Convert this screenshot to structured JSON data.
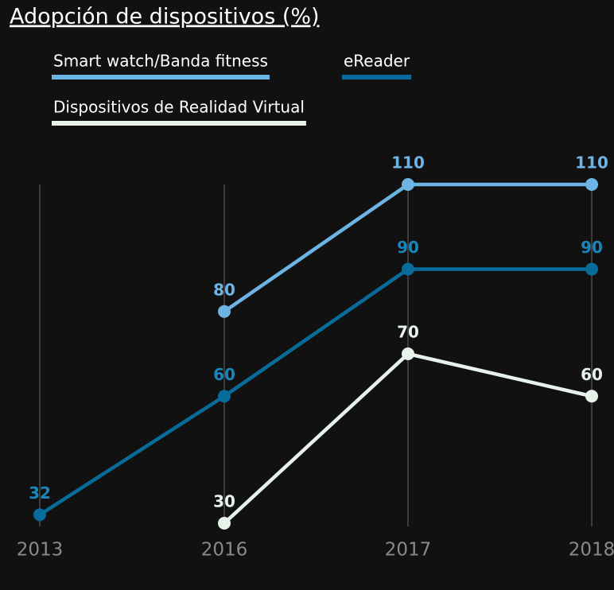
{
  "chart_data": {
    "type": "line",
    "title": "Adopción de dispositivos (%)",
    "categories": [
      "2013",
      "2016",
      "2017",
      "2018"
    ],
    "series": [
      {
        "name": "Smart watch/Banda fitness",
        "color": "#6cb4e4",
        "values": [
          null,
          80,
          110,
          110
        ]
      },
      {
        "name": "eReader",
        "color": "#086c9a",
        "values": [
          32,
          60,
          90,
          90
        ]
      },
      {
        "name": "Dispositivos de Realidad Virtual",
        "color": "#e6f2ea",
        "values": [
          null,
          30,
          70,
          60
        ]
      }
    ],
    "grid": true
  }
}
